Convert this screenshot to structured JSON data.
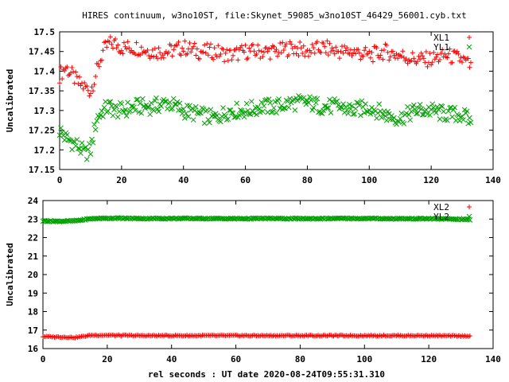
{
  "title": "HIRES continuum, w3no10ST, file:Skynet_59085_w3no10ST_46429_56001.cyb.txt",
  "xlabel": "rel seconds : UT date 2020-08-24T09:55:31.310",
  "colors": {
    "red": "#ff0000",
    "green": "#00a000",
    "frame": "#000000"
  },
  "chart_data": [
    {
      "type": "scatter",
      "ylabel": "Uncalibrated",
      "xlim": [
        0,
        140
      ],
      "ylim": [
        17.15,
        17.5
      ],
      "xticks": [
        "0",
        "20",
        "40",
        "60",
        "80",
        "100",
        "120",
        "140"
      ],
      "yticks": [
        "17.15",
        "17.2",
        "17.25",
        "17.3",
        "17.35",
        "17.4",
        "17.45",
        "17.5"
      ],
      "legend_position": "top-right",
      "series": [
        {
          "name": "XL1",
          "marker": "plus",
          "color": "#ff0000",
          "x": [
            0,
            2,
            4,
            6,
            8,
            10,
            12,
            14,
            16,
            18,
            20,
            25,
            30,
            35,
            40,
            45,
            50,
            55,
            60,
            65,
            70,
            75,
            80,
            85,
            90,
            95,
            100,
            105,
            110,
            115,
            120,
            125,
            130,
            133
          ],
          "y": [
            17.39,
            17.41,
            17.39,
            17.37,
            17.36,
            17.35,
            17.4,
            17.45,
            17.47,
            17.47,
            17.46,
            17.46,
            17.45,
            17.45,
            17.46,
            17.45,
            17.45,
            17.44,
            17.45,
            17.45,
            17.45,
            17.46,
            17.45,
            17.46,
            17.45,
            17.45,
            17.44,
            17.45,
            17.44,
            17.43,
            17.43,
            17.44,
            17.43,
            17.41
          ]
        },
        {
          "name": "YL1",
          "marker": "cross",
          "color": "#00a000",
          "x": [
            0,
            2,
            4,
            6,
            8,
            10,
            12,
            14,
            16,
            18,
            20,
            25,
            30,
            35,
            40,
            45,
            50,
            55,
            60,
            65,
            70,
            75,
            80,
            85,
            90,
            95,
            100,
            105,
            110,
            115,
            120,
            125,
            130,
            133
          ],
          "y": [
            17.25,
            17.23,
            17.22,
            17.21,
            17.19,
            17.2,
            17.28,
            17.3,
            17.31,
            17.3,
            17.3,
            17.31,
            17.31,
            17.32,
            17.3,
            17.29,
            17.28,
            17.3,
            17.3,
            17.31,
            17.31,
            17.32,
            17.32,
            17.31,
            17.31,
            17.3,
            17.31,
            17.29,
            17.28,
            17.3,
            17.3,
            17.29,
            17.29,
            17.27
          ]
        }
      ]
    },
    {
      "type": "scatter",
      "ylabel": "Uncalibrated",
      "xlim": [
        0,
        140
      ],
      "ylim": [
        16,
        24
      ],
      "xticks": [
        "0",
        "20",
        "40",
        "60",
        "80",
        "100",
        "120",
        "140"
      ],
      "yticks": [
        "16",
        "17",
        "18",
        "19",
        "20",
        "21",
        "22",
        "23",
        "24"
      ],
      "legend_position": "top-right",
      "series": [
        {
          "name": "XL2",
          "marker": "plus",
          "color": "#ff0000",
          "x": [
            0,
            5,
            10,
            15,
            20,
            30,
            40,
            50,
            60,
            70,
            80,
            90,
            100,
            110,
            120,
            130,
            133
          ],
          "y": [
            16.65,
            16.63,
            16.6,
            16.72,
            16.72,
            16.7,
            16.7,
            16.7,
            16.7,
            16.7,
            16.7,
            16.7,
            16.7,
            16.7,
            16.7,
            16.68,
            16.68
          ]
        },
        {
          "name": "YL2",
          "marker": "cross",
          "color": "#00a000",
          "x": [
            0,
            5,
            10,
            15,
            20,
            30,
            40,
            50,
            60,
            70,
            80,
            90,
            100,
            110,
            120,
            130,
            133
          ],
          "y": [
            22.9,
            22.88,
            22.9,
            23.02,
            23.05,
            23.03,
            23.03,
            23.03,
            23.02,
            23.03,
            23.02,
            23.03,
            23.03,
            23.02,
            23.02,
            22.99,
            22.97
          ]
        }
      ]
    }
  ]
}
